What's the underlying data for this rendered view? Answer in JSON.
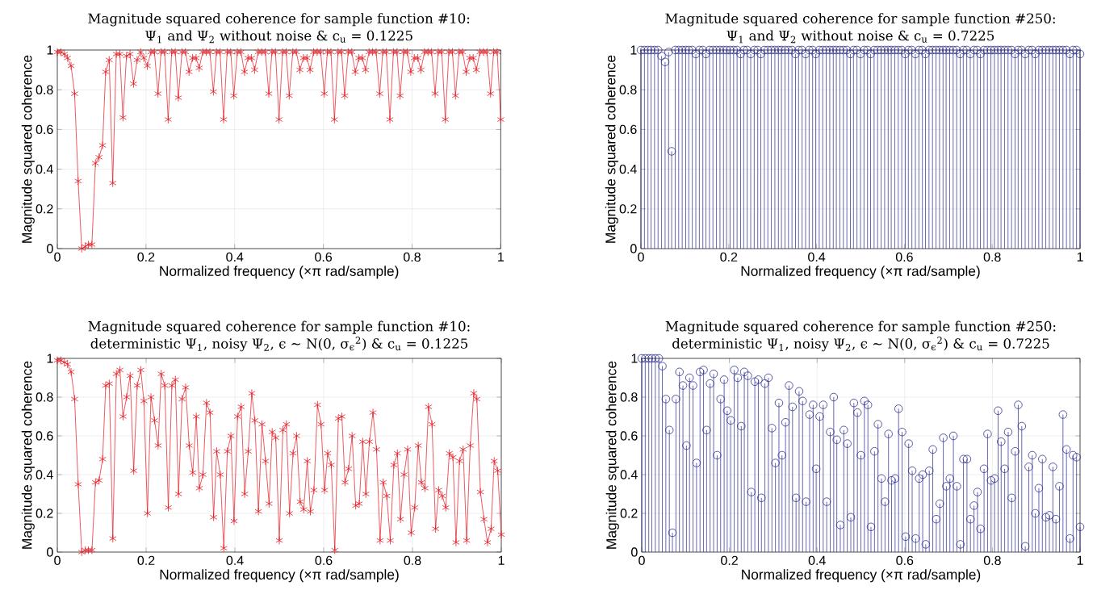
{
  "chart_data": [
    {
      "type": "line",
      "title": "Magnitude squared coherence for sample function #10:",
      "subtitle": "Ψ$_{1}$ and Ψ$_{2}$ without noise & c$_{u}$ = 0.1225",
      "xlabel": "Normalized frequency (×π rad/sample)",
      "ylabel": "Magnitude squared coherence",
      "color": "#e41e26",
      "marker": "cross",
      "grid": true,
      "xlim": [
        0,
        1
      ],
      "ylim": [
        0,
        1
      ],
      "xticks": [
        0,
        0.2,
        0.4,
        0.6,
        0.8,
        1
      ],
      "yticks": [
        0,
        0.2,
        0.4,
        0.6,
        0.8,
        1
      ],
      "x": [
        0,
        0.008,
        0.016,
        0.023,
        0.031,
        0.039,
        0.047,
        0.055,
        0.063,
        0.07,
        0.078,
        0.086,
        0.094,
        0.102,
        0.109,
        0.117,
        0.125,
        0.133,
        0.141,
        0.148,
        0.156,
        0.164,
        0.172,
        0.18,
        0.188,
        0.195,
        0.203,
        0.211,
        0.219,
        0.227,
        0.234,
        0.242,
        0.25,
        0.258,
        0.266,
        0.273,
        0.281,
        0.289,
        0.297,
        0.305,
        0.313,
        0.32,
        0.328,
        0.336,
        0.344,
        0.352,
        0.359,
        0.367,
        0.375,
        0.383,
        0.391,
        0.398,
        0.406,
        0.414,
        0.422,
        0.43,
        0.438,
        0.445,
        0.453,
        0.461,
        0.469,
        0.477,
        0.484,
        0.492,
        0.5,
        0.508,
        0.516,
        0.523,
        0.531,
        0.539,
        0.547,
        0.555,
        0.563,
        0.57,
        0.578,
        0.586,
        0.594,
        0.602,
        0.609,
        0.617,
        0.625,
        0.633,
        0.641,
        0.648,
        0.656,
        0.664,
        0.672,
        0.68,
        0.688,
        0.695,
        0.703,
        0.711,
        0.719,
        0.727,
        0.734,
        0.742,
        0.75,
        0.758,
        0.766,
        0.773,
        0.781,
        0.789,
        0.797,
        0.805,
        0.813,
        0.82,
        0.828,
        0.836,
        0.844,
        0.852,
        0.859,
        0.867,
        0.875,
        0.883,
        0.891,
        0.898,
        0.906,
        0.914,
        0.922,
        0.93,
        0.938,
        0.945,
        0.953,
        0.961,
        0.969,
        0.977,
        0.984,
        0.992,
        1
      ],
      "values": [
        0.99,
        0.99,
        0.98,
        0.96,
        0.92,
        0.78,
        0.34,
        0.0,
        0.01,
        0.02,
        0.02,
        0.43,
        0.46,
        0.52,
        0.89,
        0.95,
        0.33,
        0.98,
        0.98,
        0.66,
        0.97,
        0.98,
        0.83,
        0.95,
        0.99,
        0.96,
        0.92,
        0.99,
        0.99,
        0.78,
        0.99,
        0.99,
        0.65,
        0.99,
        0.99,
        0.76,
        0.99,
        0.99,
        0.89,
        0.96,
        0.96,
        0.91,
        0.99,
        0.99,
        0.99,
        0.79,
        0.99,
        0.99,
        0.65,
        0.99,
        0.99,
        0.77,
        0.99,
        0.99,
        0.89,
        0.96,
        0.96,
        0.9,
        0.99,
        0.99,
        0.99,
        0.78,
        0.99,
        0.99,
        0.65,
        0.99,
        0.99,
        0.77,
        0.99,
        0.99,
        0.9,
        0.96,
        0.96,
        0.9,
        0.99,
        0.99,
        0.99,
        0.78,
        0.99,
        0.99,
        0.65,
        0.99,
        0.99,
        0.77,
        0.99,
        0.99,
        0.89,
        0.96,
        0.96,
        0.9,
        0.99,
        0.99,
        0.99,
        0.78,
        0.99,
        0.99,
        0.65,
        0.99,
        0.99,
        0.77,
        0.99,
        0.99,
        0.89,
        0.96,
        0.96,
        0.9,
        0.99,
        0.99,
        0.99,
        0.78,
        0.99,
        0.99,
        0.65,
        0.99,
        0.99,
        0.77,
        0.99,
        0.99,
        0.89,
        0.96,
        0.96,
        0.9,
        0.99,
        0.99,
        0.99,
        0.78,
        0.99,
        0.99,
        0.65
      ]
    },
    {
      "type": "lollipop",
      "title": "Magnitude squared coherence for sample function #250:",
      "subtitle": "Ψ$_{1}$ and Ψ$_{2}$ without noise & c$_{u}$ = 0.7225",
      "xlabel": "Normalized frequency (×π rad/sample)",
      "ylabel": "Magnitude squared coherence",
      "color": "#2e3192",
      "marker": "circle",
      "grid": true,
      "xlim": [
        0,
        1
      ],
      "ylim": [
        0,
        1
      ],
      "xticks": [
        0,
        0.2,
        0.4,
        0.6,
        0.8,
        1
      ],
      "yticks": [
        0,
        0.2,
        0.4,
        0.6,
        0.8,
        1
      ],
      "x": [
        0,
        0.008,
        0.016,
        0.023,
        0.031,
        0.039,
        0.047,
        0.055,
        0.063,
        0.07,
        0.078,
        0.086,
        0.094,
        0.102,
        0.109,
        0.117,
        0.125,
        0.133,
        0.141,
        0.148,
        0.156,
        0.164,
        0.172,
        0.18,
        0.188,
        0.195,
        0.203,
        0.211,
        0.219,
        0.227,
        0.234,
        0.242,
        0.25,
        0.258,
        0.266,
        0.273,
        0.281,
        0.289,
        0.297,
        0.305,
        0.313,
        0.32,
        0.328,
        0.336,
        0.344,
        0.352,
        0.359,
        0.367,
        0.375,
        0.383,
        0.391,
        0.398,
        0.406,
        0.414,
        0.422,
        0.43,
        0.438,
        0.445,
        0.453,
        0.461,
        0.469,
        0.477,
        0.484,
        0.492,
        0.5,
        0.508,
        0.516,
        0.523,
        0.531,
        0.539,
        0.547,
        0.555,
        0.563,
        0.57,
        0.578,
        0.586,
        0.594,
        0.602,
        0.609,
        0.617,
        0.625,
        0.633,
        0.641,
        0.648,
        0.656,
        0.664,
        0.672,
        0.68,
        0.688,
        0.695,
        0.703,
        0.711,
        0.719,
        0.727,
        0.734,
        0.742,
        0.75,
        0.758,
        0.766,
        0.773,
        0.781,
        0.789,
        0.797,
        0.805,
        0.813,
        0.82,
        0.828,
        0.836,
        0.844,
        0.852,
        0.859,
        0.867,
        0.875,
        0.883,
        0.891,
        0.898,
        0.906,
        0.914,
        0.922,
        0.93,
        0.938,
        0.945,
        0.953,
        0.961,
        0.969,
        0.977,
        0.984,
        0.992,
        1
      ],
      "values": [
        1,
        1,
        1,
        1,
        1,
        1,
        0.97,
        0.94,
        0.99,
        0.49,
        1,
        1,
        1,
        1,
        1,
        1,
        0.98,
        1,
        1,
        0.98,
        1,
        1,
        1,
        1,
        1,
        1,
        1,
        1,
        1,
        0.98,
        1,
        1,
        0.98,
        1,
        1,
        0.98,
        1,
        1,
        1,
        1,
        1,
        1,
        1,
        1,
        1,
        0.98,
        1,
        1,
        0.98,
        1,
        1,
        0.98,
        1,
        1,
        1,
        1,
        1,
        1,
        1,
        1,
        1,
        0.98,
        1,
        1,
        0.98,
        1,
        1,
        0.98,
        1,
        1,
        1,
        1,
        1,
        1,
        1,
        1,
        1,
        0.98,
        1,
        1,
        0.98,
        1,
        1,
        0.98,
        1,
        1,
        1,
        1,
        1,
        1,
        1,
        1,
        1,
        0.98,
        1,
        1,
        0.98,
        1,
        1,
        0.98,
        1,
        1,
        1,
        1,
        1,
        1,
        1,
        1,
        1,
        0.98,
        1,
        1,
        0.98,
        1,
        1,
        0.98,
        1,
        1,
        1,
        1,
        1,
        1,
        1,
        1,
        1,
        0.98,
        1,
        1,
        0.98
      ]
    },
    {
      "type": "line",
      "title": "Magnitude squared coherence for sample function #10:",
      "subtitle": "deterministic Ψ$_{1}$, noisy Ψ$_{2}$, ϵ ∼ N(0, σ$_{ϵ}$$^{2}$) & c$_{u}$ = 0.1225",
      "xlabel": "Normalized frequency (×π rad/sample)",
      "ylabel": "Magnitude squared coherence",
      "color": "#e41e26",
      "marker": "cross",
      "grid": true,
      "xlim": [
        0,
        1
      ],
      "ylim": [
        0,
        1
      ],
      "xticks": [
        0,
        0.2,
        0.4,
        0.6,
        0.8,
        1
      ],
      "yticks": [
        0,
        0.2,
        0.4,
        0.6,
        0.8,
        1
      ],
      "x": [
        0,
        0.008,
        0.016,
        0.023,
        0.031,
        0.039,
        0.047,
        0.055,
        0.063,
        0.07,
        0.078,
        0.086,
        0.094,
        0.102,
        0.109,
        0.117,
        0.125,
        0.133,
        0.141,
        0.148,
        0.156,
        0.164,
        0.172,
        0.18,
        0.188,
        0.195,
        0.203,
        0.211,
        0.219,
        0.227,
        0.234,
        0.242,
        0.25,
        0.258,
        0.266,
        0.273,
        0.281,
        0.289,
        0.297,
        0.305,
        0.313,
        0.32,
        0.328,
        0.336,
        0.344,
        0.352,
        0.359,
        0.367,
        0.375,
        0.383,
        0.391,
        0.398,
        0.406,
        0.414,
        0.422,
        0.43,
        0.438,
        0.445,
        0.453,
        0.461,
        0.469,
        0.477,
        0.484,
        0.492,
        0.5,
        0.508,
        0.516,
        0.523,
        0.531,
        0.539,
        0.547,
        0.555,
        0.563,
        0.57,
        0.578,
        0.586,
        0.594,
        0.602,
        0.609,
        0.617,
        0.625,
        0.633,
        0.641,
        0.648,
        0.656,
        0.664,
        0.672,
        0.68,
        0.688,
        0.695,
        0.703,
        0.711,
        0.719,
        0.727,
        0.734,
        0.742,
        0.75,
        0.758,
        0.766,
        0.773,
        0.781,
        0.789,
        0.797,
        0.805,
        0.813,
        0.82,
        0.828,
        0.836,
        0.844,
        0.852,
        0.859,
        0.867,
        0.875,
        0.883,
        0.891,
        0.898,
        0.906,
        0.914,
        0.922,
        0.93,
        0.938,
        0.945,
        0.953,
        0.961,
        0.969,
        0.977,
        0.984,
        0.992,
        1
      ],
      "values": [
        0.99,
        0.99,
        0.98,
        0.97,
        0.93,
        0.79,
        0.35,
        0.0,
        0.01,
        0.01,
        0.01,
        0.36,
        0.37,
        0.48,
        0.86,
        0.87,
        0.07,
        0.92,
        0.94,
        0.7,
        0.8,
        0.91,
        0.42,
        0.86,
        0.94,
        0.78,
        0.2,
        0.8,
        0.68,
        0.55,
        0.92,
        0.86,
        0.23,
        0.86,
        0.89,
        0.3,
        0.79,
        0.85,
        0.55,
        0.41,
        0.7,
        0.33,
        0.4,
        0.77,
        0.72,
        0.18,
        0.52,
        0.4,
        0.02,
        0.52,
        0.6,
        0.16,
        0.7,
        0.75,
        0.3,
        0.52,
        0.82,
        0.68,
        0.21,
        0.66,
        0.47,
        0.25,
        0.62,
        0.59,
        0.06,
        0.63,
        0.66,
        0.2,
        0.51,
        0.6,
        0.26,
        0.22,
        0.47,
        0.21,
        0.32,
        0.76,
        0.66,
        0.32,
        0.51,
        0.45,
        0.01,
        0.69,
        0.7,
        0.36,
        0.43,
        0.6,
        0.24,
        0.25,
        0.57,
        0.3,
        0.57,
        0.72,
        0.53,
        0.06,
        0.36,
        0.29,
        0.06,
        0.45,
        0.51,
        0.17,
        0.4,
        0.53,
        0.1,
        0.23,
        0.55,
        0.36,
        0.33,
        0.75,
        0.66,
        0.12,
        0.32,
        0.29,
        0.23,
        0.51,
        0.49,
        0.05,
        0.47,
        0.53,
        0.06,
        0.55,
        0.82,
        0.79,
        0.31,
        0.17,
        0.05,
        0.12,
        0.47,
        0.42,
        0.09
      ]
    },
    {
      "type": "lollipop",
      "title": "Magnitude squared coherence for sample function #250:",
      "subtitle": "deterministic Ψ$_{1}$, noisy Ψ$_{2}$, ϵ ∼ N(0, σ$_{ϵ}$$^{2}$) & c$_{u}$ = 0.7225",
      "xlabel": "Normalized frequency (×π rad/sample)",
      "ylabel": "Magnitude squared coherence",
      "color": "#2e3192",
      "marker": "circle",
      "grid": true,
      "xlim": [
        0,
        1
      ],
      "ylim": [
        0,
        1
      ],
      "xticks": [
        0,
        0.2,
        0.4,
        0.6,
        0.8,
        1
      ],
      "yticks": [
        0,
        0.2,
        0.4,
        0.6,
        0.8,
        1
      ],
      "x": [
        0,
        0.008,
        0.016,
        0.023,
        0.031,
        0.039,
        0.047,
        0.055,
        0.063,
        0.07,
        0.078,
        0.086,
        0.094,
        0.102,
        0.109,
        0.117,
        0.125,
        0.133,
        0.141,
        0.148,
        0.156,
        0.164,
        0.172,
        0.18,
        0.188,
        0.195,
        0.203,
        0.211,
        0.219,
        0.227,
        0.234,
        0.242,
        0.25,
        0.258,
        0.266,
        0.273,
        0.281,
        0.289,
        0.297,
        0.305,
        0.313,
        0.32,
        0.328,
        0.336,
        0.344,
        0.352,
        0.359,
        0.367,
        0.375,
        0.383,
        0.391,
        0.398,
        0.406,
        0.414,
        0.422,
        0.43,
        0.438,
        0.445,
        0.453,
        0.461,
        0.469,
        0.477,
        0.484,
        0.492,
        0.5,
        0.508,
        0.516,
        0.523,
        0.531,
        0.539,
        0.547,
        0.555,
        0.563,
        0.57,
        0.578,
        0.586,
        0.594,
        0.602,
        0.609,
        0.617,
        0.625,
        0.633,
        0.641,
        0.648,
        0.656,
        0.664,
        0.672,
        0.68,
        0.688,
        0.695,
        0.703,
        0.711,
        0.719,
        0.727,
        0.734,
        0.742,
        0.75,
        0.758,
        0.766,
        0.773,
        0.781,
        0.789,
        0.797,
        0.805,
        0.813,
        0.82,
        0.828,
        0.836,
        0.844,
        0.852,
        0.859,
        0.867,
        0.875,
        0.883,
        0.891,
        0.898,
        0.906,
        0.914,
        0.922,
        0.93,
        0.938,
        0.945,
        0.953,
        0.961,
        0.969,
        0.977,
        0.984,
        0.992,
        1
      ],
      "values": [
        1,
        1,
        1,
        1,
        1,
        1,
        0.96,
        0.79,
        0.63,
        0.1,
        0.79,
        0.93,
        0.86,
        0.55,
        0.9,
        0.86,
        0.46,
        0.93,
        0.94,
        0.63,
        0.87,
        0.92,
        0.5,
        0.79,
        0.89,
        0.73,
        0.68,
        0.94,
        0.9,
        0.65,
        0.93,
        0.91,
        0.31,
        0.88,
        0.89,
        0.28,
        0.87,
        0.9,
        0.64,
        0.46,
        0.77,
        0.5,
        0.67,
        0.86,
        0.75,
        0.28,
        0.83,
        0.78,
        0.26,
        0.71,
        0.76,
        0.43,
        0.7,
        0.76,
        0.26,
        0.62,
        0.8,
        0.58,
        0.14,
        0.63,
        0.56,
        0.18,
        0.77,
        0.72,
        0.5,
        0.78,
        0.76,
        0.13,
        0.52,
        0.66,
        0.38,
        0.26,
        0.61,
        0.37,
        0.38,
        0.74,
        0.62,
        0.08,
        0.56,
        0.42,
        0.07,
        0.38,
        0.4,
        0.04,
        0.42,
        0.53,
        0.17,
        0.25,
        0.59,
        0.34,
        0.38,
        0.6,
        0.34,
        0.04,
        0.48,
        0.48,
        0.17,
        0.24,
        0.31,
        0.12,
        0.43,
        0.61,
        0.37,
        0.38,
        0.73,
        0.57,
        0.43,
        0.62,
        0.28,
        0.52,
        0.76,
        0.65,
        0.03,
        0.44,
        0.5,
        0.2,
        0.33,
        0.48,
        0.18,
        0.19,
        0.44,
        0.17,
        0.34,
        0.71,
        0.53,
        0.07,
        0.5,
        0.49,
        0.13
      ]
    }
  ]
}
